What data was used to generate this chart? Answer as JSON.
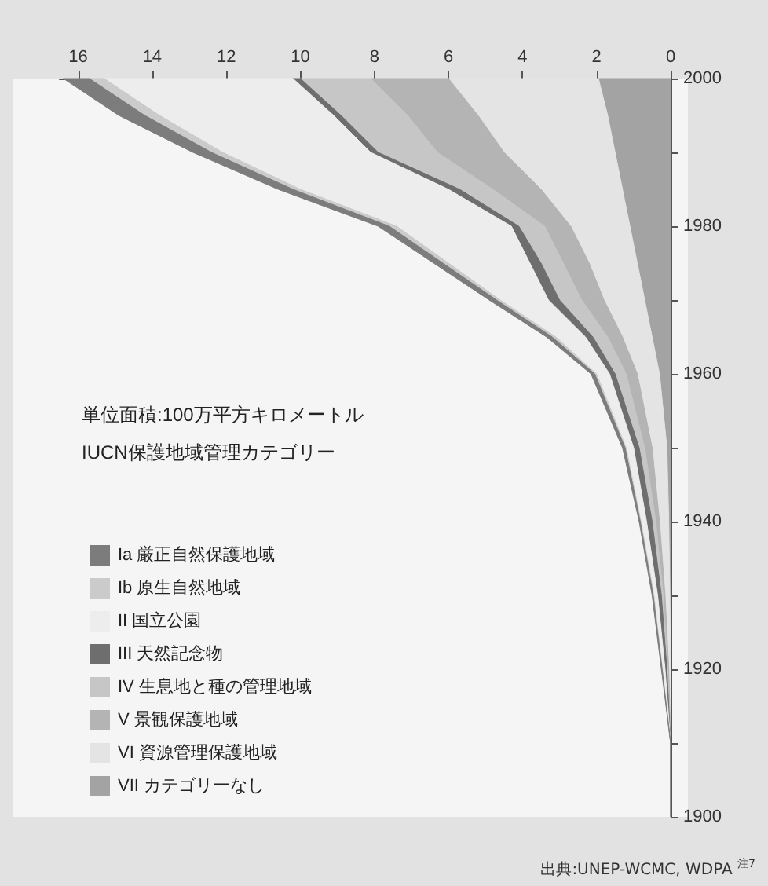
{
  "chart_data": {
    "type": "area",
    "stacked": true,
    "orientation": "horizontal",
    "title": "単位面積:100万平方キロメートル",
    "legend_title": "IUCN保護地域管理カテゴリー",
    "annotations": [
      "出典:UNEP-WCMC, WDPA $^{注7}$"
    ],
    "x": [
      1900,
      1910,
      1920,
      1930,
      1940,
      1950,
      1960,
      1965,
      1970,
      1975,
      1980,
      1985,
      1990,
      1995,
      2000
    ],
    "series": [
      {
        "name": "VII カテゴリーなし",
        "color": "#a3a3a3",
        "values": [
          0,
          0,
          0,
          0.02,
          0.05,
          0.1,
          0.3,
          0.5,
          0.7,
          0.9,
          1.1,
          1.3,
          1.5,
          1.7,
          1.95
        ]
      },
      {
        "name": "VI 資源管理保護地域",
        "color": "#e4e4e4",
        "values": [
          0,
          0,
          0.05,
          0.13,
          0.25,
          0.4,
          0.6,
          0.8,
          1.1,
          1.3,
          1.6,
          2.2,
          3.0,
          3.5,
          4.05
        ]
      },
      {
        "name": "V 景観保護地域",
        "color": "#b4b4b4",
        "values": [
          0,
          0,
          0.03,
          0.05,
          0.1,
          0.2,
          0.3,
          0.4,
          0.6,
          0.7,
          0.7,
          1.3,
          1.8,
          1.9,
          2.1
        ]
      },
      {
        "name": "IV 生息地と種の管理地域",
        "color": "#c6c6c6",
        "values": [
          0,
          0,
          0.02,
          0.05,
          0.1,
          0.15,
          0.3,
          0.4,
          0.6,
          0.6,
          0.7,
          0.9,
          1.6,
          1.8,
          1.9
        ]
      },
      {
        "name": "III 天然記念物",
        "color": "#6e6e6e",
        "values": [
          0,
          0,
          0.05,
          0.1,
          0.15,
          0.15,
          0.15,
          0.2,
          0.3,
          0.3,
          0.2,
          0.3,
          0.2,
          0.2,
          0.2
        ]
      },
      {
        "name": "II 国立公園",
        "color": "#ededed",
        "values": [
          0,
          0,
          0.07,
          0.1,
          0.15,
          0.2,
          0.35,
          0.8,
          1.3,
          2.2,
          3.1,
          4.0,
          4.0,
          4.7,
          5.1
        ]
      },
      {
        "name": "Ib 原生自然地域",
        "color": "#cbcbcb",
        "values": [
          0,
          0,
          0.01,
          0.02,
          0.02,
          0.03,
          0.05,
          0.1,
          0.1,
          0.15,
          0.2,
          0.2,
          0.3,
          0.4,
          0.4
        ]
      },
      {
        "name": "Ia 厳正自然保護地域",
        "color": "#7c7c7c",
        "values": [
          0,
          0,
          0.02,
          0.03,
          0.03,
          0.07,
          0.1,
          0.15,
          0.2,
          0.25,
          0.3,
          0.4,
          0.5,
          0.7,
          0.7
        ]
      }
    ],
    "xlim": [
      16.5,
      0
    ],
    "xticks": [
      16,
      14,
      12,
      10,
      8,
      6,
      4,
      2,
      0
    ],
    "ylim": [
      1900,
      2000
    ],
    "yticks": [
      1900,
      {
        "value": 1910,
        "label": null
      },
      1920,
      {
        "value": 1930,
        "label": null
      },
      1940,
      {
        "value": 1950,
        "label": null
      },
      1960,
      {
        "value": 1970,
        "label": null
      },
      1980,
      {
        "value": 1990,
        "label": null
      },
      2000
    ],
    "grid": false,
    "legend": "bottom left"
  }
}
